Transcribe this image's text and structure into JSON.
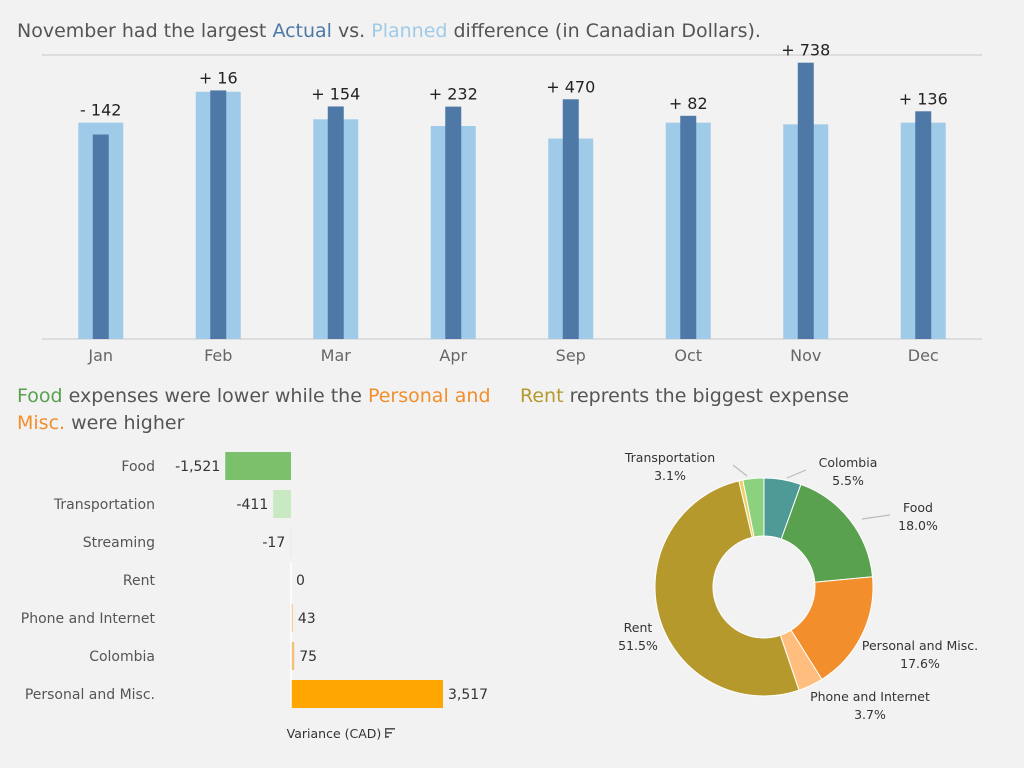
{
  "titles": {
    "main": {
      "pre": "November had the largest ",
      "actual": "Actual",
      "mid": " vs. ",
      "planned": "Planned",
      "post": " difference (in Canadian Dollars)."
    },
    "food": {
      "food": "Food",
      "mid": " expenses were lower while the ",
      "personal": "Personal and Misc.",
      "post": " were higher"
    },
    "rent": {
      "rent": "Rent",
      "post": "  reprents the biggest expense"
    }
  },
  "colors": {
    "actual": "#4e79a7",
    "planned": "#a0cbe8",
    "food_green": "#59a14f",
    "personal_orange": "#f28e2b",
    "rent_olive": "#b6992d",
    "text": "#555555"
  },
  "chart_data": [
    {
      "type": "bar",
      "categories": [
        "Jan",
        "Feb",
        "Mar",
        "Apr",
        "Sep",
        "Oct",
        "Nov",
        "Dec"
      ],
      "series": [
        {
          "name": "Planned",
          "values": [
            2590,
            2960,
            2630,
            2550,
            2400,
            2590,
            2570,
            2590
          ]
        },
        {
          "name": "Actual",
          "values": [
            2448,
            2976,
            2784,
            2782,
            2870,
            2672,
            3308,
            2726
          ]
        }
      ],
      "difference_labels": [
        "- 142",
        "+ 16",
        "+ 154",
        "+ 232",
        "+ 470",
        "+ 82",
        "+ 738",
        "+ 136"
      ],
      "ylim": [
        0,
        3400
      ],
      "grid": false
    },
    {
      "type": "bar",
      "orientation": "horizontal",
      "categories": [
        "Food",
        "Transportation",
        "Streaming",
        "Rent",
        "Phone and Internet",
        "Colombia",
        "Personal and Misc."
      ],
      "values": [
        -1521,
        -411,
        -17,
        0,
        43,
        75,
        3517
      ],
      "value_labels": [
        "-1,521",
        "-411",
        "-17",
        "0",
        "43",
        "75",
        "3,517"
      ],
      "bar_colors": [
        "#7bc16c",
        "#c8e9c1",
        "#dff0da",
        "#f5d9a8",
        "#f7c98a",
        "#f6c07a",
        "#ffa600"
      ],
      "xlabel": "Variance (CAD)",
      "sort_icon": "sort-descending-icon"
    },
    {
      "type": "pie",
      "donut": true,
      "slices": [
        {
          "label": "Colombia",
          "percent_label": "5.5%",
          "value": 5.5,
          "color": "#4e9a96"
        },
        {
          "label": "Food",
          "percent_label": "18.0%",
          "value": 18.0,
          "color": "#59a14f"
        },
        {
          "label": "Personal and Misc.",
          "percent_label": "17.6%",
          "value": 17.6,
          "color": "#f28e2b"
        },
        {
          "label": "Phone and Internet",
          "percent_label": "3.7%",
          "value": 3.7,
          "color": "#ffbe7d"
        },
        {
          "label": "Rent",
          "percent_label": "51.5%",
          "value": 51.5,
          "color": "#b6992d"
        },
        {
          "label": "Streaming",
          "percent_label": "",
          "value": 0.6,
          "color": "#f1ce63"
        },
        {
          "label": "Transportation",
          "percent_label": "3.1%",
          "value": 3.1,
          "color": "#8cd17d"
        }
      ]
    }
  ]
}
